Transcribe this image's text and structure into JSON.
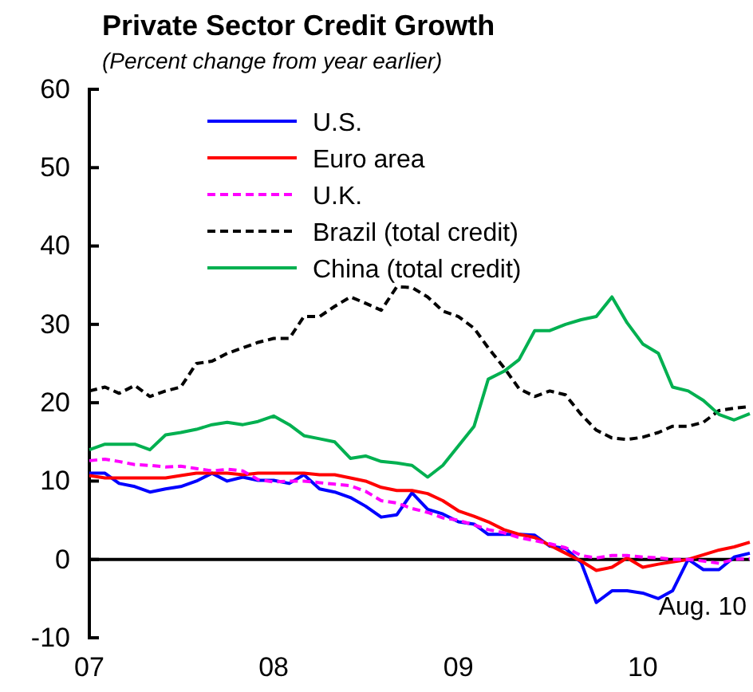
{
  "chart_data": {
    "type": "line",
    "title": "Private Sector Credit Growth",
    "subtitle": "(Percent change from year earlier)",
    "x": [
      "2007-01",
      "2007-02",
      "2007-03",
      "2007-04",
      "2007-05",
      "2007-06",
      "2007-07",
      "2007-08",
      "2007-09",
      "2007-10",
      "2007-11",
      "2007-12",
      "2008-01",
      "2008-02",
      "2008-03",
      "2008-04",
      "2008-05",
      "2008-06",
      "2008-07",
      "2008-08",
      "2008-09",
      "2008-10",
      "2008-11",
      "2008-12",
      "2009-01",
      "2009-02",
      "2009-03",
      "2009-04",
      "2009-05",
      "2009-06",
      "2009-07",
      "2009-08",
      "2009-09",
      "2009-10",
      "2009-11",
      "2009-12",
      "2010-01",
      "2010-02",
      "2010-03",
      "2010-04",
      "2010-05",
      "2010-06",
      "2010-07",
      "2010-08"
    ],
    "series": [
      {
        "name": "U.S.",
        "color": "#0000ff",
        "line_style": "solid",
        "values": [
          11,
          11,
          9.7,
          9.3,
          8.6,
          9,
          9.3,
          10,
          11,
          10,
          10.5,
          10.1,
          10.1,
          9.7,
          10.8,
          9,
          8.6,
          7.9,
          6.8,
          5.4,
          5.7,
          8.5,
          6.4,
          5.8,
          4.8,
          4.5,
          3.2,
          3.2,
          3.2,
          3.1,
          1.7,
          1.4,
          -0.4,
          -5.5,
          -4,
          -4,
          -4.3,
          -5,
          -4,
          0,
          -1.3,
          -1.3,
          0.3,
          0.8
        ]
      },
      {
        "name": "Euro area",
        "color": "#ff0000",
        "line_style": "solid",
        "values": [
          10.7,
          10.4,
          10.4,
          10.4,
          10.4,
          10.4,
          10.7,
          11,
          11,
          11,
          10.8,
          11,
          11,
          11,
          11,
          10.8,
          10.8,
          10.4,
          10,
          9.2,
          8.8,
          8.8,
          8.4,
          7.5,
          6.2,
          5.5,
          4.8,
          3.8,
          3.2,
          2.8,
          1.8,
          0.8,
          -0.2,
          -1.4,
          -1,
          0.2,
          -1,
          -0.6,
          -0.3,
          0,
          0.6,
          1.2,
          1.6,
          2.2
        ]
      },
      {
        "name": "U.K.",
        "color": "#ff00ff",
        "line_style": "dashed",
        "values": [
          12.6,
          12.8,
          12.5,
          12.1,
          12,
          11.8,
          11.9,
          11.6,
          11.3,
          11.5,
          11.3,
          10.2,
          9.9,
          10,
          10,
          9.8,
          9.6,
          9.4,
          8.7,
          7.5,
          7.2,
          6.5,
          6,
          5.3,
          5,
          4.4,
          3.8,
          3.4,
          2.8,
          2.4,
          2,
          1.5,
          0.5,
          0.2,
          0.5,
          0.5,
          0.3,
          0.2,
          0,
          0,
          -0.2,
          -0.5,
          0,
          0.1
        ]
      },
      {
        "name": "Brazil (total credit)",
        "color": "#000000",
        "line_style": "dashed",
        "values": [
          21.5,
          22,
          21.2,
          22.2,
          20.8,
          21.5,
          22,
          25,
          25.3,
          26.3,
          27,
          27.7,
          28.2,
          28.2,
          31,
          31,
          32.3,
          33.5,
          32.7,
          31.8,
          34.8,
          34.7,
          33.5,
          31.7,
          31,
          29.5,
          27,
          24.5,
          21.8,
          20.8,
          21.5,
          21,
          18.5,
          16.5,
          15.5,
          15.3,
          15.6,
          16.2,
          17,
          17,
          17.5,
          19,
          19.3,
          19.5
        ]
      },
      {
        "name": "China (total credit)",
        "color": "#00b050",
        "line_style": "solid",
        "values": [
          14,
          14.7,
          14.7,
          14.7,
          14,
          15.9,
          16.2,
          16.6,
          17.2,
          17.5,
          17.2,
          17.6,
          18.3,
          17.2,
          15.8,
          15.4,
          15,
          12.9,
          13.2,
          12.5,
          12.3,
          12,
          10.5,
          12,
          14.5,
          17,
          23,
          24,
          25.5,
          29.2,
          29.2,
          30,
          30.6,
          31,
          33.5,
          30.2,
          27.5,
          26.3,
          22,
          21.5,
          20.3,
          18.5,
          17.8,
          18.6
        ]
      }
    ],
    "xlim": [
      "2007-01",
      "2010-08"
    ],
    "xticks": [
      {
        "value": "2007-01",
        "label": "07"
      },
      {
        "value": "2008-01",
        "label": "08"
      },
      {
        "value": "2009-01",
        "label": "09"
      },
      {
        "value": "2010-01",
        "label": "10"
      }
    ],
    "ylim": [
      -10,
      60
    ],
    "yticks": [
      -10,
      0,
      10,
      20,
      30,
      40,
      50,
      60
    ],
    "ref_lines": [
      {
        "axis": "y",
        "value": 0,
        "color": "#000000"
      }
    ],
    "annotations": [
      "Aug. 10"
    ],
    "grid": false,
    "legend": "top",
    "marker": "none"
  }
}
